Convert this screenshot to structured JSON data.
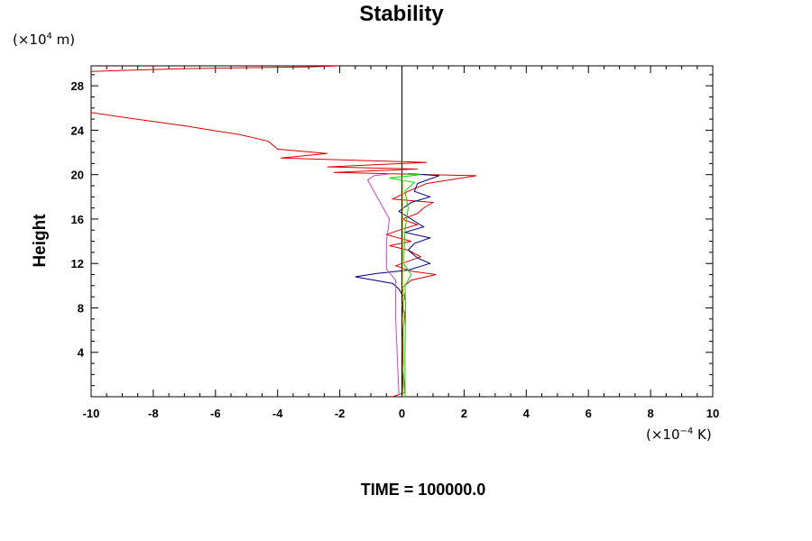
{
  "chart_data": {
    "type": "line",
    "title": "Stability",
    "ylabel": "Height",
    "xlabel": "",
    "x_unit": {
      "prefix": "(×10",
      "exp": "−4",
      "suffix": " K)"
    },
    "y_unit": {
      "prefix": "(×10",
      "exp": "4",
      "suffix": " m)"
    },
    "xlim": [
      -10,
      10
    ],
    "ylim": [
      0,
      29.8
    ],
    "x_ticks": [
      -10,
      -8,
      -6,
      -4,
      -2,
      0,
      2,
      4,
      6,
      8,
      10
    ],
    "x_tick_labels": [
      "-10",
      "-8",
      "-6",
      "-4",
      "-2",
      "0",
      "2",
      "4",
      "6",
      "8",
      "10"
    ],
    "y_ticks": [
      4,
      8,
      12,
      16,
      20,
      24,
      28
    ],
    "y_tick_labels": [
      "4",
      "8",
      "12",
      "16",
      "20",
      "24",
      "28"
    ],
    "grid": false,
    "legend": "none",
    "footer": "TIME = 100000.0",
    "series": [
      {
        "color": "#000000",
        "points": [
          [
            0,
            0
          ],
          [
            0,
            29.8
          ]
        ]
      },
      {
        "color": "#dd0000",
        "points": [
          [
            -0.3,
            0
          ],
          [
            0.1,
            0.4
          ],
          [
            0.05,
            2
          ],
          [
            0,
            5
          ],
          [
            0.1,
            7.5
          ],
          [
            0,
            8.2
          ],
          [
            0.1,
            9
          ],
          [
            0,
            9.8
          ],
          [
            0.3,
            10.5
          ],
          [
            1.1,
            11
          ],
          [
            0.3,
            11.3
          ],
          [
            -0.2,
            11.8
          ],
          [
            0.6,
            12.6
          ],
          [
            0.2,
            13.2
          ],
          [
            -0.4,
            13.6
          ],
          [
            0.3,
            14
          ],
          [
            -0.5,
            14.6
          ],
          [
            -0.1,
            15
          ],
          [
            0.5,
            15.5
          ],
          [
            0,
            16
          ],
          [
            0.5,
            16.5
          ],
          [
            0.7,
            17
          ],
          [
            1.0,
            17.5
          ],
          [
            -0.3,
            17.8
          ],
          [
            0.2,
            18.5
          ],
          [
            0.8,
            19.2
          ],
          [
            2.4,
            19.9
          ],
          [
            -2.2,
            20.2
          ],
          [
            0.5,
            20.5
          ],
          [
            -2.4,
            20.7
          ],
          [
            0.8,
            21.1
          ],
          [
            -3.9,
            21.5
          ],
          [
            -2.4,
            21.9
          ],
          [
            -4.0,
            22.3
          ],
          [
            -4.3,
            23.0
          ],
          [
            -5.2,
            23.6
          ],
          [
            -7.0,
            24.4
          ],
          [
            -8.8,
            25.1
          ],
          [
            -10,
            25.6
          ]
        ]
      },
      {
        "color": "#dd0000",
        "points": [
          [
            -10,
            29.3
          ],
          [
            -7,
            29.55
          ],
          [
            -3,
            29.7
          ],
          [
            -2,
            29.8
          ]
        ]
      },
      {
        "color": "#000080",
        "points": [
          [
            0,
            0
          ],
          [
            0.05,
            3
          ],
          [
            0,
            7
          ],
          [
            0.05,
            9
          ],
          [
            -0.1,
            9.7
          ],
          [
            -0.3,
            10.2
          ],
          [
            -1.5,
            10.8
          ],
          [
            -0.8,
            11.1
          ],
          [
            0.2,
            11.4
          ],
          [
            0.9,
            12
          ],
          [
            0.5,
            12.5
          ],
          [
            0.2,
            13.2
          ],
          [
            0.4,
            13.8
          ],
          [
            0.9,
            14.3
          ],
          [
            0.1,
            14.8
          ],
          [
            0.7,
            15.3
          ],
          [
            0.3,
            16
          ],
          [
            -0.1,
            16.7
          ],
          [
            0.3,
            17.5
          ],
          [
            0.9,
            18
          ],
          [
            0.4,
            18.5
          ],
          [
            0.5,
            19.2
          ],
          [
            1.2,
            19.9
          ],
          [
            0.2,
            20.1
          ]
        ]
      },
      {
        "color": "#cc44cc",
        "points": [
          [
            -0.1,
            0.3
          ],
          [
            -0.2,
            7
          ],
          [
            -0.2,
            10.5
          ],
          [
            -0.5,
            11.5
          ],
          [
            -0.5,
            12.5
          ],
          [
            -0.5,
            14
          ],
          [
            -0.4,
            16
          ],
          [
            -0.8,
            18
          ],
          [
            -1.1,
            19.5
          ],
          [
            -0.9,
            19.9
          ],
          [
            -0.3,
            20.1
          ]
        ]
      },
      {
        "color": "#00dd00",
        "points": [
          [
            0.1,
            0
          ],
          [
            0.1,
            4
          ],
          [
            0.12,
            8
          ],
          [
            0.1,
            10
          ],
          [
            0.3,
            11
          ],
          [
            0.05,
            12
          ],
          [
            0.1,
            15
          ],
          [
            0.2,
            17
          ],
          [
            0.1,
            18.5
          ],
          [
            0.4,
            19.3
          ],
          [
            -0.4,
            19.7
          ],
          [
            0.6,
            20
          ],
          [
            0,
            20.1
          ]
        ]
      },
      {
        "color": "#dddd00",
        "points": [
          [
            0.05,
            0
          ],
          [
            0.05,
            10
          ],
          [
            0.03,
            15
          ],
          [
            0.05,
            19.5
          ]
        ]
      }
    ]
  }
}
